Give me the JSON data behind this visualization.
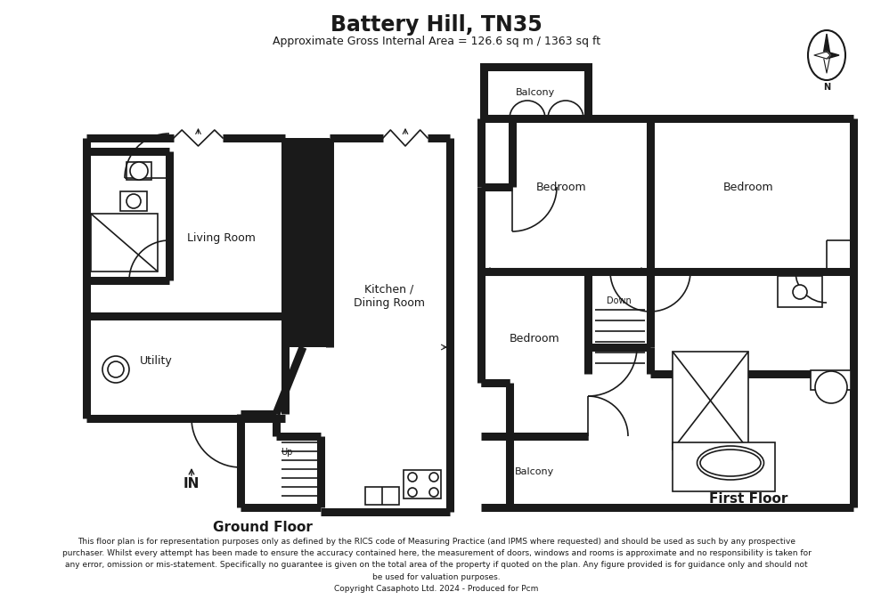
{
  "title": "Battery Hill, TN35",
  "subtitle": "Approximate Gross Internal Area = 126.6 sq m / 1363 sq ft",
  "ground_floor_label": "Ground Floor",
  "first_floor_label": "First Floor",
  "disclaimer_lines": [
    "This floor plan is for representation purposes only as defined by the RICS code of Measuring Practice (and IPMS where requested) and should be used as such by any prospective",
    "purchaser. Whilst every attempt has been made to ensure the accuracy contained here, the measurement of doors, windows and rooms is approximate and no responsibility is taken for",
    "any error, omission or mis-statement. Specifically no guarantee is given on the total area of the property if quoted on the plan. Any figure provided is for guidance only and should not",
    "be used for valuation purposes.",
    "Copyright Casaphoto Ltd. 2024 - Produced for Pcm"
  ],
  "bg_color": "#ffffff",
  "wall_color": "#1a1a1a",
  "wall_lw": 6.5,
  "thin_lw": 1.2,
  "rooms": {
    "living_room": "Living Room",
    "utility": "Utility",
    "kitchen": "Kitchen /\nDining Room",
    "bedroom1": "Bedroom",
    "bedroom2": "Bedroom",
    "bedroom3": "Bedroom",
    "balcony_top": "Balcony",
    "balcony_bot": "Balcony",
    "in_label": "IN",
    "up_label": "Up",
    "down_label": "Down"
  }
}
